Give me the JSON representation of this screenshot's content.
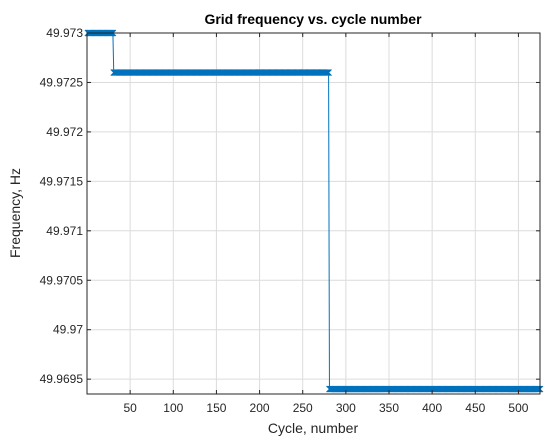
{
  "chart_data": {
    "type": "line",
    "title": "Grid frequency vs. cycle number",
    "xlabel": "Cycle, number",
    "ylabel": "Frequency, Hz",
    "xlim": [
      0,
      525
    ],
    "ylim": [
      49.96935,
      49.973
    ],
    "grid": true,
    "x_ticks": [
      50,
      100,
      150,
      200,
      250,
      300,
      350,
      400,
      450,
      500
    ],
    "x_tick_labels": [
      "50",
      "100",
      "150",
      "200",
      "250",
      "300",
      "350",
      "400",
      "450",
      "500"
    ],
    "y_ticks": [
      49.9695,
      49.97,
      49.9705,
      49.971,
      49.9715,
      49.972,
      49.9725,
      49.973
    ],
    "y_tick_labels": [
      "49.9695",
      "49.97",
      "49.9705",
      "49.971",
      "49.9715",
      "49.972",
      "49.9725",
      "49.973"
    ],
    "series": [
      {
        "color": "#0072BD",
        "marker": "x",
        "segments": [
          {
            "x_start": 1,
            "x_end": 30,
            "y": 49.973
          },
          {
            "x_start": 31,
            "x_end": 280,
            "y": 49.9726
          },
          {
            "x_start": 281,
            "x_end": 525,
            "y": 49.9694
          }
        ]
      }
    ]
  }
}
